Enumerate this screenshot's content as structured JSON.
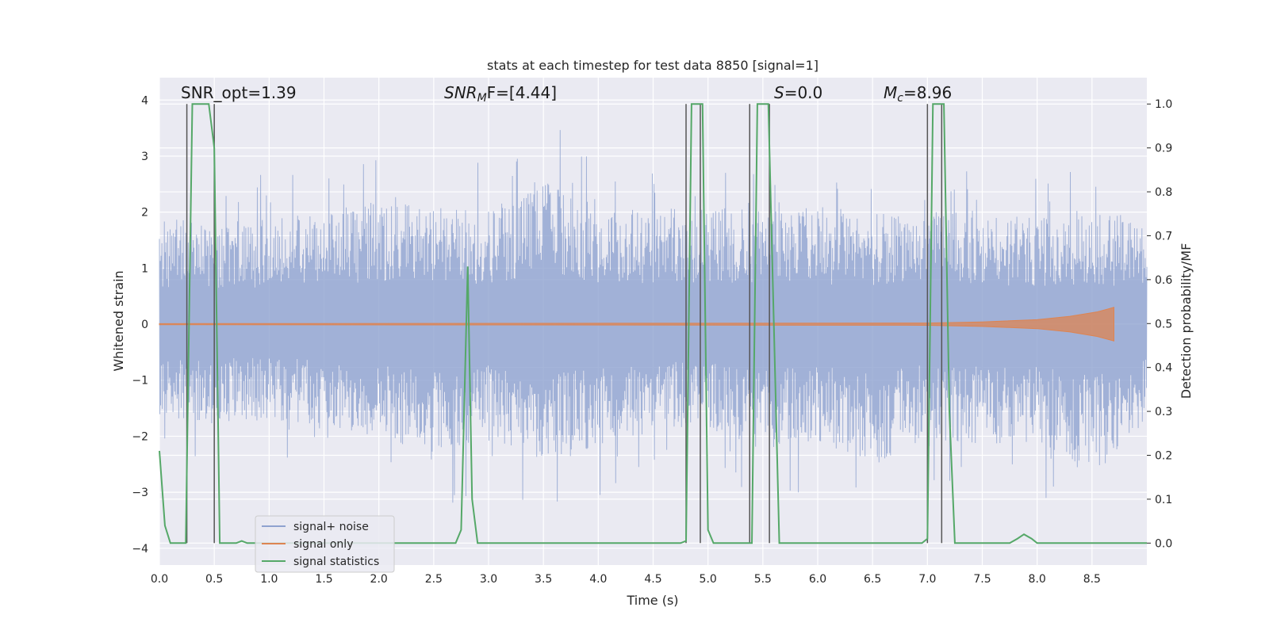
{
  "chart_data": {
    "type": "line",
    "title": "stats at each timestep for test data 8850 [signal=1]",
    "xlabel": "Time (s)",
    "ylabel_left": "Whitened strain",
    "ylabel_right": "Detection probability/MF",
    "xlim": [
      0.0,
      9.0
    ],
    "ylim_left": [
      -4.3,
      4.4
    ],
    "ylim_right": [
      -0.05,
      1.06
    ],
    "x_ticks": [
      "0.0",
      "0.5",
      "1.0",
      "1.5",
      "2.0",
      "2.5",
      "3.0",
      "3.5",
      "4.0",
      "4.5",
      "5.0",
      "5.5",
      "6.0",
      "6.5",
      "7.0",
      "7.5",
      "8.0",
      "8.5"
    ],
    "y_ticks_left": [
      "4",
      "3",
      "2",
      "1",
      "0",
      "−1",
      "−2",
      "−3",
      "−4"
    ],
    "y_ticks_right": [
      "1.0",
      "0.9",
      "0.8",
      "0.7",
      "0.6",
      "0.5",
      "0.4",
      "0.3",
      "0.2",
      "0.1",
      "0.0"
    ],
    "grid": true,
    "legend_position": "lower-left",
    "annotations": {
      "snr_opt": "SNR_opt=1.39",
      "snr_mf_base": "SNR",
      "snr_mf_sub": "M",
      "snr_mf_rest": "F=[4.44]",
      "s_base": "S",
      "s_rest": "=0.0",
      "mc_base": "M",
      "mc_sub": "c",
      "mc_rest": "=8.96"
    },
    "series": [
      {
        "name": "signal+ noise",
        "color": "#8fa2cf",
        "axis": "left",
        "envelope_x": [
          0.0,
          0.5,
          1.0,
          1.5,
          2.0,
          2.5,
          3.0,
          3.5,
          4.0,
          4.5,
          5.0,
          5.5,
          6.0,
          6.5,
          7.0,
          7.5,
          8.0,
          8.5,
          9.0
        ],
        "envelope_upper": [
          2.7,
          2.6,
          2.7,
          2.9,
          3.1,
          3.0,
          2.9,
          3.7,
          3.0,
          2.9,
          3.1,
          2.9,
          2.9,
          2.8,
          2.9,
          2.9,
          2.7,
          2.8,
          2.8
        ],
        "envelope_lower": [
          -2.4,
          -2.5,
          -2.4,
          -2.6,
          -3.0,
          -3.3,
          -3.0,
          -3.5,
          -3.2,
          -2.6,
          -2.7,
          -3.2,
          -3.0,
          -3.6,
          -2.9,
          -3.1,
          -3.0,
          -3.8,
          -2.5
        ]
      },
      {
        "name": "signal only",
        "color": "#dd8452",
        "axis": "left",
        "x": [
          0.0,
          7.0,
          7.5,
          8.0,
          8.3,
          8.55,
          8.7
        ],
        "amplitude": [
          0.01,
          0.02,
          0.04,
          0.08,
          0.14,
          0.22,
          0.3
        ]
      },
      {
        "name": "signal statistics",
        "color": "#55a868",
        "axis": "right",
        "x": [
          0.0,
          0.05,
          0.1,
          0.24,
          0.3,
          0.33,
          0.45,
          0.5,
          0.55,
          0.7,
          0.75,
          0.8,
          2.7,
          2.75,
          2.81,
          2.85,
          2.9,
          2.95,
          4.75,
          4.8,
          4.85,
          4.92,
          4.95,
          5.0,
          5.05,
          5.4,
          5.45,
          5.5,
          5.55,
          5.6,
          5.65,
          5.7,
          6.95,
          7.0,
          7.05,
          7.1,
          7.15,
          7.2,
          7.25,
          7.75,
          7.82,
          7.88,
          7.95,
          8.0,
          9.0
        ],
        "y": [
          0.21,
          0.04,
          0.0,
          0.0,
          1.0,
          1.0,
          1.0,
          0.9,
          0.0,
          0.0,
          0.005,
          0.0,
          0.0,
          0.03,
          0.63,
          0.1,
          0.0,
          0.0,
          0.0,
          0.005,
          1.0,
          1.0,
          1.0,
          0.03,
          0.0,
          0.0,
          1.0,
          1.0,
          1.0,
          0.5,
          0.0,
          0.0,
          0.0,
          0.01,
          1.0,
          1.0,
          1.0,
          0.3,
          0.0,
          0.0,
          0.01,
          0.02,
          0.01,
          0.0,
          0.0
        ]
      }
    ],
    "vertical_markers_x": [
      0.25,
      0.5,
      4.8,
      4.93,
      5.38,
      5.56,
      7.0,
      7.13
    ]
  }
}
